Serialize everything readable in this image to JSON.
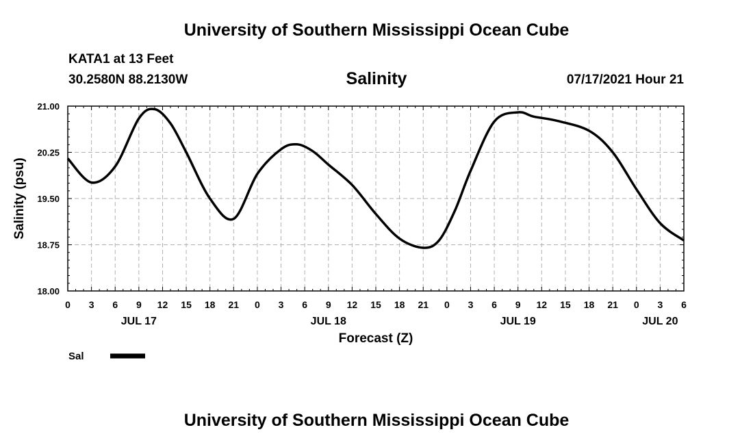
{
  "header": {
    "top_title": "University of Southern Mississippi Ocean Cube",
    "station": "KATA1 at 13 Feet",
    "coords": "30.2580N  88.2130W",
    "subtitle": "Salinity",
    "datestamp": "07/17/2021 Hour 21"
  },
  "footer": {
    "bottom_title": "University of Southern Mississippi Ocean Cube"
  },
  "colors": {
    "line": "#000000",
    "grid": "#b0b0b0"
  },
  "chart_data": {
    "type": "line",
    "title": "Salinity",
    "xlabel": "Forecast (Z)",
    "ylabel": "Salinity (psu)",
    "ylim": [
      18.0,
      21.0
    ],
    "yticks": [
      "18.00",
      "18.75",
      "19.50",
      "20.25",
      "21.00"
    ],
    "xlim_hours": [
      0,
      78
    ],
    "xtick_labels": [
      "0",
      "3",
      "6",
      "9",
      "12",
      "15",
      "18",
      "21",
      "0",
      "3",
      "6",
      "9",
      "12",
      "15",
      "18",
      "21",
      "0",
      "3",
      "6",
      "9",
      "12",
      "15",
      "18",
      "21",
      "0",
      "3",
      "6"
    ],
    "date_labels": [
      {
        "label": "JUL 17",
        "tick": 3
      },
      {
        "label": "JUL 18",
        "tick": 11
      },
      {
        "label": "JUL 19",
        "tick": 19
      },
      {
        "label": "JUL 20",
        "tick": 25
      }
    ],
    "grid": true,
    "legend": {
      "position": "bottom-left"
    },
    "series": [
      {
        "name": "Sal",
        "x": [
          0,
          3,
          6,
          9,
          11,
          13,
          15,
          18,
          21,
          24,
          27,
          29,
          31,
          33,
          36,
          39,
          42,
          45,
          47,
          49,
          51,
          54,
          57,
          59,
          62,
          66,
          69,
          72,
          75,
          78
        ],
        "y": [
          20.15,
          19.76,
          20.02,
          20.8,
          20.95,
          20.72,
          20.25,
          19.5,
          19.17,
          19.9,
          20.3,
          20.38,
          20.27,
          20.05,
          19.72,
          19.25,
          18.85,
          18.7,
          18.82,
          19.3,
          19.95,
          20.75,
          20.9,
          20.83,
          20.76,
          20.6,
          20.25,
          19.65,
          19.1,
          18.82
        ]
      }
    ]
  }
}
